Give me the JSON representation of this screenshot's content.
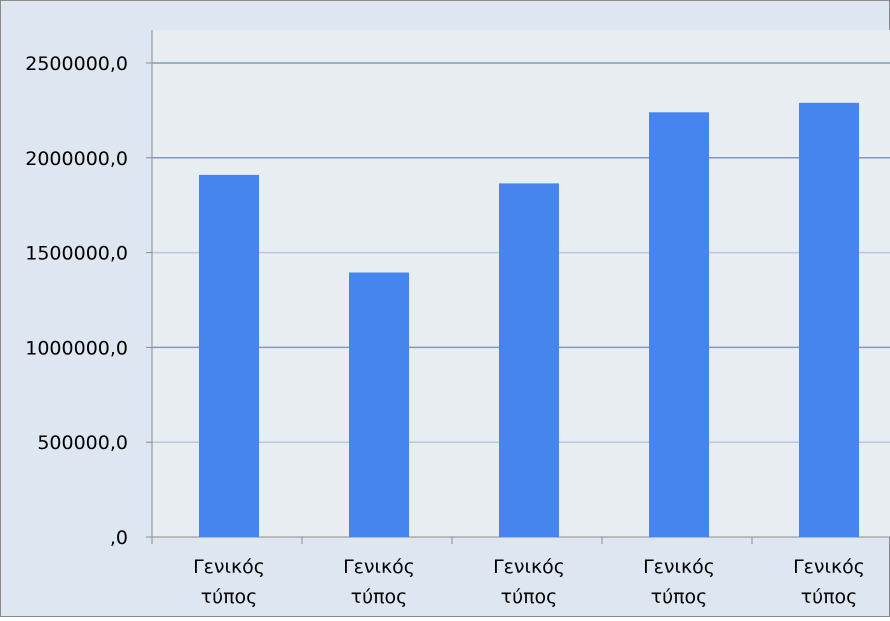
{
  "chart_data": {
    "type": "bar",
    "title": "",
    "xlabel": "",
    "ylabel": "",
    "categories": [
      "Γενικός τύπος",
      "Γενικός τύπος",
      "Γενικός τύπος",
      "Γενικός τύπος",
      "Γενικός τύπος"
    ],
    "category_lines": [
      [
        "Γενικός",
        "τύπος"
      ],
      [
        "Γενικός",
        "τύπος"
      ],
      [
        "Γενικός",
        "τύπος"
      ],
      [
        "Γενικός",
        "τύπος"
      ],
      [
        "Γενικός",
        "τύπος"
      ]
    ],
    "values": [
      1910000,
      1395000,
      1865000,
      2240000,
      2290000
    ],
    "ylim": [
      0,
      2500000
    ],
    "yticks": [
      0,
      500000,
      1000000,
      1500000,
      2000000,
      2500000
    ],
    "ytick_labels": [
      ",0",
      "500000,0",
      "1000000,0",
      "1500000,0",
      "2000000,0",
      "2500000,0"
    ],
    "grid": true,
    "legend": "none",
    "colors": {
      "bar": "#4684EE",
      "plot_bg": "#E8EDF1",
      "chart_bg": "#DEE6F1",
      "gridline": "#B7C7DE",
      "major_gridline": "#7F98C1"
    }
  }
}
